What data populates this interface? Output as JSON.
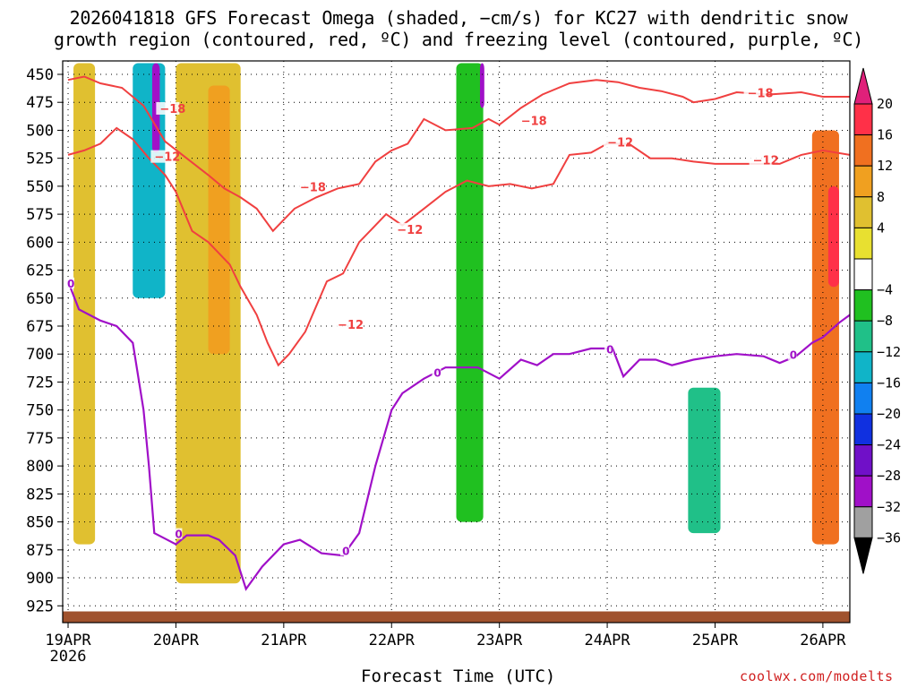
{
  "title_line1": "2026041818 GFS Forecast Omega (shaded, −cm/s) for KC27 with dendritic snow",
  "title_line2": "growth region (contoured, red, ºC) and freezing level (contoured, purple, ºC)",
  "xlabel": "Forecast Time (UTC)",
  "credit": "coolwx.com/modelts",
  "chart_data": {
    "type": "heatmap",
    "title": "2026041818 GFS Forecast Omega (shaded, −cm/s) for KC27 with dendritic snow growth region (contoured, red, ºC) and freezing level (contoured, purple, ºC)",
    "xlabel": "Forecast Time (UTC)",
    "ylabel": "",
    "x_ticks": [
      {
        "label": "19APR",
        "sublabel": "2026",
        "day": 0
      },
      {
        "label": "20APR",
        "day": 1
      },
      {
        "label": "21APR",
        "day": 2
      },
      {
        "label": "22APR",
        "day": 3
      },
      {
        "label": "23APR",
        "day": 4
      },
      {
        "label": "24APR",
        "day": 5
      },
      {
        "label": "25APR",
        "day": 6
      },
      {
        "label": "26APR",
        "day": 7
      }
    ],
    "xlim_days": [
      -0.05,
      7.25
    ],
    "ylim_pressure": [
      940,
      438
    ],
    "y_ticks": [
      450,
      475,
      500,
      525,
      550,
      575,
      600,
      625,
      650,
      675,
      700,
      725,
      750,
      775,
      800,
      825,
      850,
      875,
      900,
      925
    ],
    "grid": true,
    "colorbar": {
      "ticks": [
        "20",
        "16",
        "12",
        "8",
        "4",
        "−4",
        "−8",
        "−12",
        "−16",
        "−20",
        "−24",
        "−28",
        "−32",
        "−36"
      ],
      "colors": [
        "#ff3048",
        "#f07020",
        "#f0a020",
        "#e0c030",
        "#e8e030",
        "#ffffff",
        "#20c020",
        "#20c088",
        "#10b4c8",
        "#1080f0",
        "#1030e0",
        "#7010c8",
        "#a010c8",
        "#a0a0a0"
      ],
      "top_arrow_color": "#e0207a",
      "bottom_arrow_color": "#000000"
    },
    "contours": {
      "dendritic": {
        "color": "#f04040",
        "labels": [
          "−18",
          "−12",
          "−18",
          "−12",
          "−12",
          "−18",
          "−12",
          "−18",
          "−12"
        ],
        "upper_line": [
          [
            0,
            455
          ],
          [
            0.15,
            452
          ],
          [
            0.3,
            458
          ],
          [
            0.5,
            462
          ],
          [
            0.7,
            478
          ],
          [
            0.9,
            510
          ],
          [
            1.1,
            525
          ],
          [
            1.3,
            540
          ],
          [
            1.45,
            552
          ],
          [
            1.6,
            560
          ],
          [
            1.75,
            570
          ],
          [
            1.9,
            590
          ],
          [
            2.1,
            570
          ],
          [
            2.3,
            560
          ],
          [
            2.5,
            552
          ],
          [
            2.7,
            548
          ],
          [
            2.85,
            528
          ],
          [
            3.0,
            518
          ],
          [
            3.15,
            512
          ],
          [
            3.3,
            490
          ],
          [
            3.5,
            500
          ],
          [
            3.75,
            498
          ],
          [
            3.9,
            490
          ],
          [
            4.0,
            495
          ],
          [
            4.2,
            480
          ],
          [
            4.4,
            468
          ],
          [
            4.65,
            458
          ],
          [
            4.9,
            455
          ],
          [
            5.1,
            457
          ],
          [
            5.3,
            462
          ],
          [
            5.5,
            465
          ],
          [
            5.7,
            470
          ],
          [
            5.8,
            475
          ],
          [
            6.0,
            472
          ],
          [
            6.2,
            466
          ],
          [
            6.5,
            468
          ],
          [
            6.8,
            466
          ],
          [
            7.0,
            470
          ],
          [
            7.25,
            470
          ]
        ],
        "lower_line": [
          [
            0,
            522
          ],
          [
            0.15,
            518
          ],
          [
            0.3,
            512
          ],
          [
            0.45,
            498
          ],
          [
            0.6,
            508
          ],
          [
            0.75,
            525
          ],
          [
            0.9,
            540
          ],
          [
            1.0,
            555
          ],
          [
            1.15,
            590
          ],
          [
            1.3,
            600
          ],
          [
            1.5,
            620
          ],
          [
            1.6,
            640
          ],
          [
            1.75,
            665
          ],
          [
            1.85,
            690
          ],
          [
            1.95,
            710
          ],
          [
            2.05,
            700
          ],
          [
            2.2,
            680
          ],
          [
            2.4,
            635
          ],
          [
            2.55,
            628
          ],
          [
            2.7,
            600
          ],
          [
            2.8,
            590
          ],
          [
            2.95,
            575
          ],
          [
            3.1,
            585
          ],
          [
            3.3,
            570
          ],
          [
            3.5,
            555
          ],
          [
            3.7,
            545
          ],
          [
            3.9,
            550
          ],
          [
            4.1,
            548
          ],
          [
            4.3,
            552
          ],
          [
            4.5,
            548
          ],
          [
            4.65,
            522
          ],
          [
            4.85,
            520
          ],
          [
            5.0,
            512
          ],
          [
            5.2,
            512
          ],
          [
            5.4,
            525
          ],
          [
            5.6,
            525
          ],
          [
            5.8,
            528
          ],
          [
            6.0,
            530
          ],
          [
            6.2,
            530
          ],
          [
            6.4,
            530
          ],
          [
            6.6,
            530
          ],
          [
            6.8,
            522
          ],
          [
            7.0,
            518
          ],
          [
            7.25,
            522
          ]
        ]
      },
      "freezing_level": {
        "color": "#a010c8",
        "labels": [
          "0",
          "0",
          "0",
          "0",
          "0",
          "0"
        ],
        "line": [
          [
            0,
            635
          ],
          [
            0.1,
            660
          ],
          [
            0.3,
            670
          ],
          [
            0.45,
            675
          ],
          [
            0.6,
            690
          ],
          [
            0.7,
            750
          ],
          [
            0.75,
            800
          ],
          [
            0.8,
            860
          ],
          [
            0.9,
            865
          ],
          [
            1.0,
            870
          ],
          [
            1.1,
            862
          ],
          [
            1.3,
            862
          ],
          [
            1.4,
            866
          ],
          [
            1.55,
            880
          ],
          [
            1.65,
            910
          ],
          [
            1.8,
            890
          ],
          [
            2.0,
            870
          ],
          [
            2.15,
            866
          ],
          [
            2.35,
            878
          ],
          [
            2.55,
            880
          ],
          [
            2.7,
            860
          ],
          [
            2.85,
            800
          ],
          [
            3.0,
            750
          ],
          [
            3.1,
            735
          ],
          [
            3.3,
            722
          ],
          [
            3.5,
            712
          ],
          [
            3.8,
            712
          ],
          [
            4.0,
            722
          ],
          [
            4.2,
            705
          ],
          [
            4.35,
            710
          ],
          [
            4.5,
            700
          ],
          [
            4.65,
            700
          ],
          [
            4.85,
            695
          ],
          [
            5.05,
            695
          ],
          [
            5.15,
            720
          ],
          [
            5.3,
            705
          ],
          [
            5.45,
            705
          ],
          [
            5.6,
            710
          ],
          [
            5.8,
            705
          ],
          [
            6.0,
            702
          ],
          [
            6.2,
            700
          ],
          [
            6.45,
            702
          ],
          [
            6.6,
            708
          ],
          [
            6.75,
            702
          ],
          [
            6.9,
            690
          ],
          [
            7.0,
            685
          ],
          [
            7.15,
            672
          ],
          [
            7.25,
            665
          ]
        ]
      }
    },
    "omega_regions": [
      {
        "name": "rising 19apr 4-12",
        "x": [
          0.05,
          0.25
        ],
        "p": [
          440,
          870
        ],
        "value": 8
      },
      {
        "name": "rising 19apr strong",
        "x": [
          0.6,
          0.9
        ],
        "p": [
          440,
          650
        ],
        "value": -16
      },
      {
        "name": "rising 19apr core",
        "x": [
          0.78,
          0.85
        ],
        "p": [
          440,
          520
        ],
        "value": -32
      },
      {
        "name": "rising 20apr",
        "x": [
          1.0,
          1.6
        ],
        "p": [
          440,
          905
        ],
        "value": 8
      },
      {
        "name": "rising 20apr core",
        "x": [
          1.3,
          1.5
        ],
        "p": [
          460,
          700
        ],
        "value": 12
      },
      {
        "name": "rising 22apr",
        "x": [
          3.6,
          3.85
        ],
        "p": [
          440,
          850
        ],
        "value": -8
      },
      {
        "name": "rising 22apr core",
        "x": [
          3.82,
          3.86
        ],
        "p": [
          440,
          480
        ],
        "value": -32
      },
      {
        "name": "rising 24apr",
        "x": [
          5.75,
          6.05
        ],
        "p": [
          730,
          860
        ],
        "value": -12
      },
      {
        "name": "rising 26apr",
        "x": [
          6.9,
          7.15
        ],
        "p": [
          500,
          870
        ],
        "value": 16
      },
      {
        "name": "rising 26apr core",
        "x": [
          7.05,
          7.15
        ],
        "p": [
          550,
          640
        ],
        "value": 20
      }
    ],
    "surface_color": "#a0522d"
  }
}
